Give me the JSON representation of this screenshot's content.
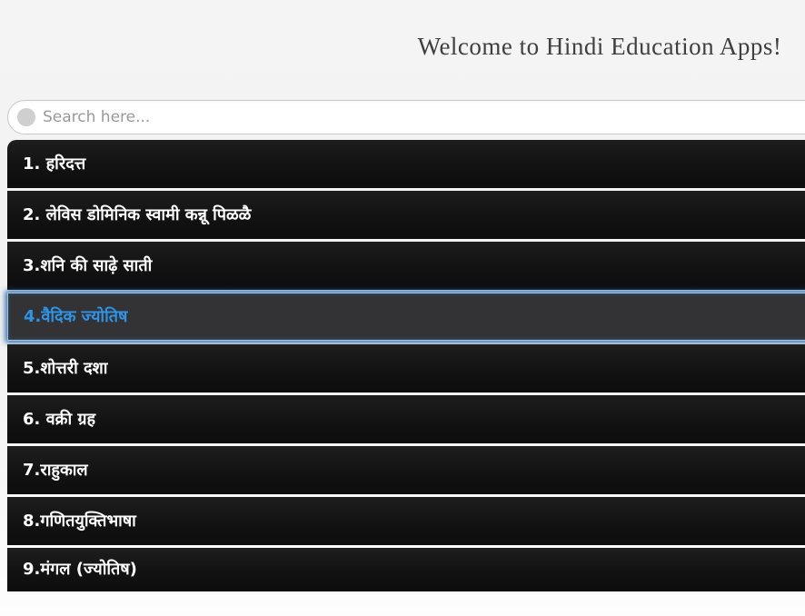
{
  "header": {
    "title": "Welcome to Hindi Education Apps!"
  },
  "search": {
    "placeholder": "Search here...",
    "value": ""
  },
  "list": {
    "items": [
      {
        "label": "1. हरिदत्त",
        "selected": false
      },
      {
        "label": "2. लेविस डोमिनिक स्वामी कन्नू पिळळै",
        "selected": false
      },
      {
        "label": "3.शनि की साढ़े साती",
        "selected": false
      },
      {
        "label": "4.वैदिक ज्योतिष",
        "selected": true
      },
      {
        "label": "5.शोत्तरी दशा",
        "selected": false
      },
      {
        "label": "6. वक्री ग्रह",
        "selected": false
      },
      {
        "label": "7.राहुकाल",
        "selected": false
      },
      {
        "label": "8.गणितयुक्तिभाषा",
        "selected": false
      },
      {
        "label": "9.मंगल (ज्योतिष)",
        "selected": false
      }
    ]
  },
  "colors": {
    "page_background_top": "#f4f4f4",
    "page_background_bottom": "#fdfdfd",
    "row_background": "#121212",
    "row_text": "#ffffff",
    "selected_row_background": "#333336",
    "selected_row_text": "#2f93e4",
    "selected_row_border": "#9cc7e8",
    "selected_row_glow": "#1b5ca0",
    "search_border": "#c9c9c9",
    "search_placeholder": "#9a9a9a",
    "search_icon": "#cfcfcf",
    "title_text": "#3f3f3f"
  }
}
